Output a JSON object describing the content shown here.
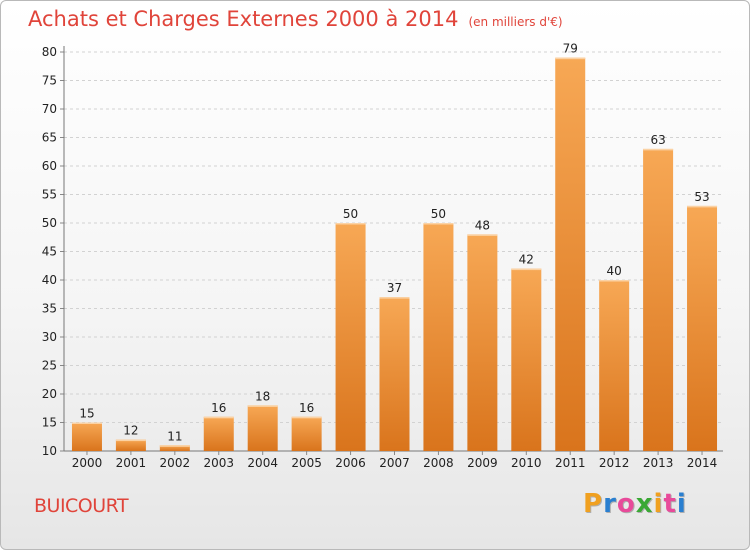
{
  "title": "Achats et Charges Externes 2000 à 2014",
  "unit_label": "(en milliers d'€)",
  "city": "BUICOURT",
  "logo": {
    "letters": [
      "P",
      "r",
      "o",
      "x",
      "i",
      "t",
      "i"
    ],
    "colors": [
      "#f0a020",
      "#2a7fd0",
      "#e84a9a",
      "#3aa835",
      "#f0a020",
      "#e84a9a",
      "#2a7fd0"
    ]
  },
  "colors": {
    "bar_top": "#f7a855",
    "bar_bottom": "#d9741c",
    "title": "#e0443a"
  },
  "chart_data": {
    "type": "bar",
    "title": "Achats et Charges Externes 2000 à 2014",
    "subtitle": "(en milliers d'€)",
    "categories": [
      "2000",
      "2001",
      "2002",
      "2003",
      "2004",
      "2005",
      "2006",
      "2007",
      "2008",
      "2009",
      "2010",
      "2011",
      "2012",
      "2013",
      "2014"
    ],
    "values": [
      15,
      12,
      11,
      16,
      18,
      16,
      50,
      37,
      50,
      48,
      42,
      79,
      40,
      63,
      53
    ],
    "ylim": [
      10,
      80
    ],
    "yticks": [
      10,
      15,
      20,
      25,
      30,
      35,
      40,
      45,
      50,
      55,
      60,
      65,
      70,
      75,
      80
    ],
    "grid": true,
    "xlabel": "",
    "ylabel": ""
  }
}
